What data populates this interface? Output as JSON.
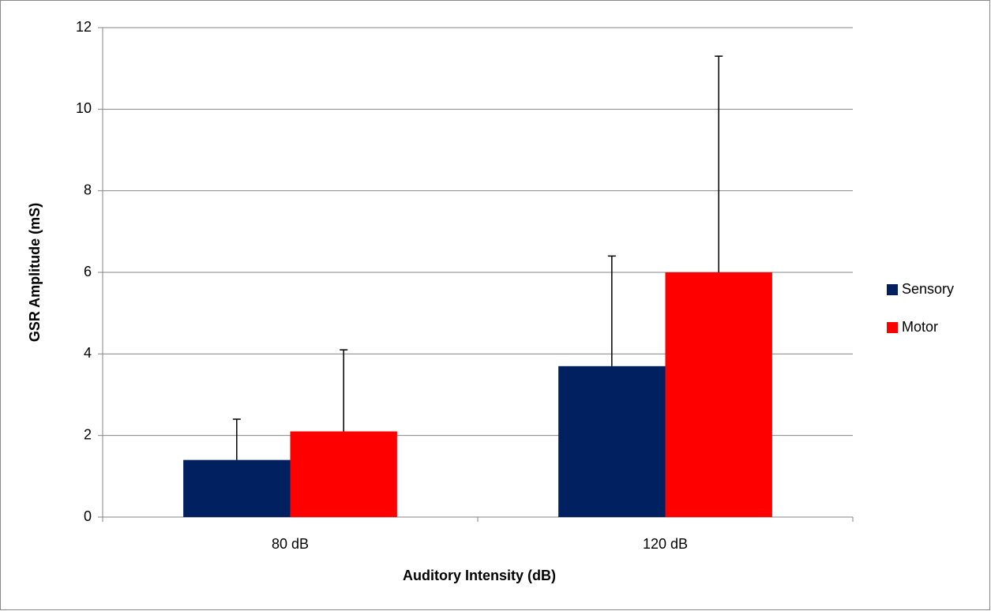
{
  "chart_data": {
    "type": "bar",
    "x_label": "Auditory Intensity (dB)",
    "y_label": "GSR Amplitude (mS)",
    "categories": [
      "80 dB",
      "120 dB"
    ],
    "series": [
      {
        "name": "Sensory",
        "color": "#002060",
        "values": [
          1.4,
          3.7
        ],
        "errors": [
          1.0,
          2.7
        ]
      },
      {
        "name": "Motor",
        "color": "#ff0000",
        "values": [
          2.1,
          6.0
        ],
        "errors": [
          2.0,
          5.3
        ]
      }
    ],
    "ylim": [
      0,
      12
    ],
    "yticks": [
      0,
      2,
      4,
      6,
      8,
      10,
      12
    ],
    "grid": true,
    "legend": "right"
  }
}
